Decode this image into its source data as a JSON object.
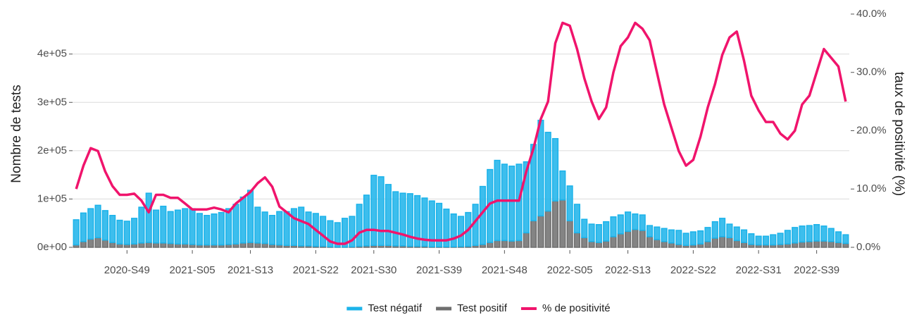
{
  "chart_data": {
    "type": "bar",
    "stacked": true,
    "ylabel": "Nombre de tests",
    "y2label": "taux de positivité (%)",
    "categories": [
      null,
      null,
      null,
      null,
      null,
      null,
      null,
      "2020-S49",
      null,
      null,
      null,
      null,
      null,
      null,
      null,
      null,
      "2021-S05",
      null,
      null,
      null,
      null,
      null,
      null,
      null,
      "2021-S13",
      null,
      null,
      null,
      null,
      null,
      null,
      null,
      null,
      "2021-S22",
      null,
      null,
      null,
      null,
      null,
      null,
      null,
      "2021-S30",
      null,
      null,
      null,
      null,
      null,
      null,
      null,
      null,
      "2021-S39",
      null,
      null,
      null,
      null,
      null,
      null,
      null,
      null,
      "2021-S48",
      null,
      null,
      null,
      null,
      null,
      null,
      null,
      null,
      "2022-S05",
      null,
      null,
      null,
      null,
      null,
      null,
      null,
      "2022-S13",
      null,
      null,
      null,
      null,
      null,
      null,
      null,
      null,
      "2022-S22",
      null,
      null,
      null,
      null,
      null,
      null,
      null,
      null,
      "2022-S31",
      null,
      null,
      null,
      null,
      null,
      null,
      null,
      "2022-S39",
      null,
      null,
      null,
      null
    ],
    "series": [
      {
        "name": "Test négatif",
        "color": "#1bb3ea",
        "values": [
          52000,
          59000,
          63000,
          67000,
          61000,
          56000,
          49000,
          48000,
          53000,
          74000,
          102000,
          68000,
          76000,
          66000,
          70000,
          73000,
          74000,
          65000,
          61000,
          64000,
          67000,
          74000,
          82000,
          95000,
          108000,
          74000,
          65000,
          60000,
          69000,
          70000,
          76000,
          80000,
          70000,
          68000,
          62000,
          54000,
          50500,
          59500,
          63000,
          87000,
          105000,
          145000,
          142000,
          126000,
          112000,
          109000,
          109000,
          105000,
          100000,
          95000,
          90000,
          78000,
          68000,
          62500,
          70000,
          85000,
          120000,
          151000,
          166000,
          158000,
          155000,
          158000,
          147000,
          158000,
          198000,
          163000,
          129000,
          60000,
          72000,
          59000,
          38000,
          36000,
          37000,
          40000,
          41000,
          39000,
          40000,
          32000,
          32000,
          23000,
          26000,
          27000,
          27000,
          29000,
          25000,
          27000,
          27000,
          29000,
          34000,
          38000,
          28000,
          28000,
          26000,
          22000,
          18000,
          18000,
          21000,
          23000,
          28000,
          32000,
          33000,
          33000,
          34000,
          31000,
          27000,
          22000,
          18000
        ]
      },
      {
        "name": "Test positif",
        "color": "#6e6e6e",
        "values": [
          5000,
          12000,
          17000,
          20000,
          15000,
          10000,
          7000,
          6000,
          7000,
          9000,
          10000,
          9000,
          9000,
          8000,
          7000,
          7000,
          6000,
          5000,
          5000,
          5000,
          5000,
          6000,
          7000,
          9000,
          10000,
          9000,
          8000,
          6000,
          5000,
          4000,
          4000,
          3000,
          3000,
          2000,
          2000,
          1000,
          500,
          500,
          1000,
          2000,
          3000,
          4000,
          4000,
          4000,
          3000,
          3000,
          2000,
          2000,
          2000,
          1000,
          1000,
          1000,
          1000,
          1500,
          2000,
          4000,
          6000,
          10000,
          14000,
          14000,
          13000,
          14000,
          30000,
          55000,
          65000,
          75000,
          96000,
          98000,
          55000,
          30000,
          20000,
          12000,
          10000,
          13000,
          22000,
          28000,
          33000,
          37000,
          35000,
          22000,
          16000,
          12000,
          9000,
          6000,
          4000,
          5000,
          7000,
          12000,
          19000,
          22000,
          20000,
          14000,
          10000,
          6000,
          5000,
          5000,
          5000,
          6000,
          7000,
          9000,
          11000,
          12000,
          13000,
          13000,
          12000,
          10000,
          8000
        ]
      },
      {
        "name": "% de positivité",
        "color": "#f0146c",
        "type": "line",
        "axis": "y2",
        "values": [
          10,
          14,
          17,
          16.5,
          13,
          10.5,
          9,
          9,
          9.2,
          8,
          6,
          9,
          9,
          8.5,
          8.5,
          7.5,
          6.5,
          6.5,
          6.5,
          6.8,
          6.5,
          6,
          7.5,
          8.5,
          9.5,
          11,
          12,
          10.4,
          7,
          6,
          5,
          4.5,
          4,
          3,
          2,
          1,
          0.6,
          0.6,
          1.2,
          2.5,
          3,
          3,
          2.8,
          2.8,
          2.5,
          2.2,
          1.8,
          1.5,
          1.3,
          1.2,
          1.2,
          1.2,
          1.5,
          2,
          3,
          4.5,
          6,
          7.5,
          8,
          8,
          8,
          8,
          13,
          17,
          22,
          25,
          35,
          38.5,
          38,
          34,
          29,
          25,
          22,
          24,
          30,
          34.5,
          36,
          38.5,
          37.5,
          35.5,
          30,
          24.5,
          20.5,
          16.5,
          14,
          15,
          19,
          24,
          28,
          33,
          36,
          37,
          32,
          26,
          23.5,
          21.5,
          21.5,
          19.5,
          18.5,
          20,
          24.5,
          26,
          30,
          34,
          32.5,
          31,
          25
        ]
      }
    ],
    "ylim": [
      0,
      490000
    ],
    "yticks": [
      {
        "value": 0,
        "label": "0e+00"
      },
      {
        "value": 100000,
        "label": "1e+05"
      },
      {
        "value": 200000,
        "label": "2e+05"
      },
      {
        "value": 300000,
        "label": "3e+05"
      },
      {
        "value": 400000,
        "label": "4e+05"
      }
    ],
    "y2lim": [
      0,
      40.6
    ],
    "y2ticks": [
      {
        "value": 0,
        "label": "0.0%"
      },
      {
        "value": 10,
        "label": "10.0%"
      },
      {
        "value": 20,
        "label": "20.0%"
      },
      {
        "value": 30,
        "label": "30.0%"
      },
      {
        "value": 40,
        "label": "40.0%"
      }
    ],
    "grid": true,
    "legend": "bottom"
  }
}
